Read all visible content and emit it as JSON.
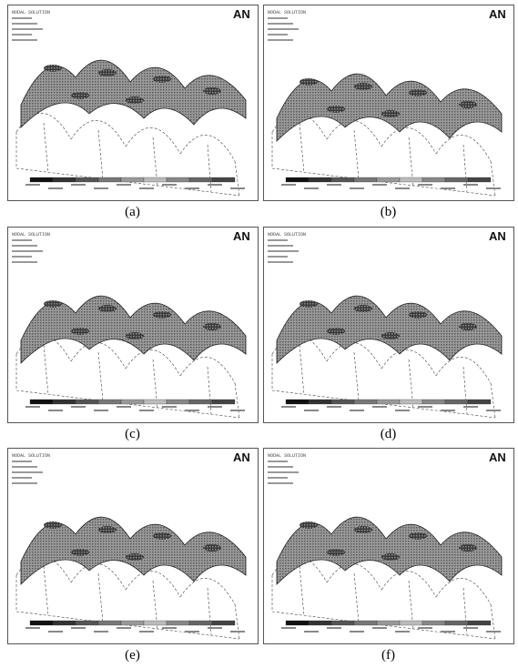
{
  "panels": [
    {
      "caption": "(a)",
      "title": "NODAL SOLUTION",
      "logo": "AN"
    },
    {
      "caption": "(b)",
      "title": "NODAL SOLUTION",
      "logo": "AN"
    },
    {
      "caption": "(c)",
      "title": "NODAL SOLUTION",
      "logo": "AN"
    },
    {
      "caption": "(d)",
      "title": "NODAL SOLUTION",
      "logo": "AN"
    },
    {
      "caption": "(e)",
      "title": "NODAL SOLUTION",
      "logo": "AN"
    },
    {
      "caption": "(f)",
      "title": "NODAL SOLUTION",
      "logo": "AN"
    }
  ]
}
